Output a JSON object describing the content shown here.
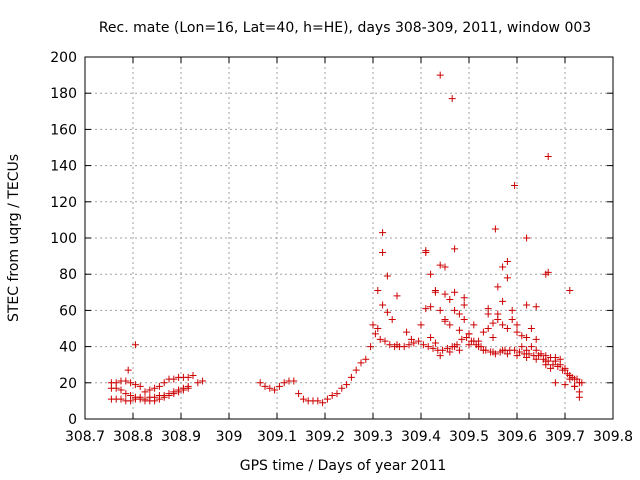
{
  "chart_data": {
    "type": "scatter",
    "title": "Rec. mate (Lon=16, Lat=40, h=HE), days 308-309, 2011, window 003",
    "xlabel": "GPS time / Days of year 2011",
    "ylabel": "STEC from uqrg / TECUs",
    "xlim": [
      308.7,
      309.8
    ],
    "ylim": [
      0,
      200
    ],
    "xticks": [
      "308.7",
      "308.8",
      "308.9",
      "309",
      "309.1",
      "309.2",
      "309.3",
      "309.4",
      "309.5",
      "309.6",
      "309.7",
      "309.8"
    ],
    "xtick_values": [
      308.7,
      308.8,
      308.9,
      309.0,
      309.1,
      309.2,
      309.3,
      309.4,
      309.5,
      309.6,
      309.7,
      309.8
    ],
    "yticks": [
      "0",
      "20",
      "40",
      "60",
      "80",
      "100",
      "120",
      "140",
      "160",
      "180",
      "200"
    ],
    "ytick_values": [
      0,
      20,
      40,
      60,
      80,
      100,
      120,
      140,
      160,
      180,
      200
    ],
    "grid": true,
    "marker": "+",
    "color": "#cc0000",
    "x": [
      308.755,
      308.765,
      308.775,
      308.785,
      308.795,
      308.805,
      308.815,
      308.825,
      308.835,
      308.845,
      308.855,
      308.865,
      308.875,
      308.885,
      308.895,
      308.905,
      308.915,
      308.925,
      308.935,
      308.945,
      308.755,
      308.765,
      308.775,
      308.785,
      308.795,
      308.805,
      308.815,
      308.825,
      308.835,
      308.845,
      308.855,
      308.865,
      308.875,
      308.885,
      308.895,
      308.905,
      308.915,
      308.755,
      308.765,
      308.775,
      308.785,
      308.795,
      308.805,
      308.815,
      308.825,
      308.835,
      308.845,
      308.855,
      308.865,
      308.875,
      308.885,
      308.895,
      308.905,
      308.915,
      308.79,
      308.805,
      309.065,
      309.075,
      309.085,
      309.095,
      309.105,
      309.115,
      309.125,
      309.135,
      309.145,
      309.155,
      309.165,
      309.175,
      309.185,
      309.195,
      309.205,
      309.215,
      309.225,
      309.235,
      309.245,
      309.255,
      309.265,
      309.275,
      309.285,
      309.295,
      309.305,
      309.315,
      309.325,
      309.335,
      309.345,
      309.355,
      309.365,
      309.375,
      309.385,
      309.395,
      309.405,
      309.415,
      309.425,
      309.435,
      309.445,
      309.455,
      309.465,
      309.475,
      309.485,
      309.495,
      309.505,
      309.515,
      309.525,
      309.535,
      309.545,
      309.555,
      309.565,
      309.575,
      309.585,
      309.595,
      309.605,
      309.615,
      309.625,
      309.635,
      309.645,
      309.655,
      309.665,
      309.675,
      309.685,
      309.695,
      309.705,
      309.715,
      309.725,
      309.735,
      309.3,
      309.31,
      309.32,
      309.33,
      309.34,
      309.35,
      309.37,
      309.38,
      309.4,
      309.41,
      309.42,
      309.43,
      309.44,
      309.45,
      309.46,
      309.47,
      309.48,
      309.49,
      309.5,
      309.51,
      309.52,
      309.53,
      309.54,
      309.55,
      309.56,
      309.57,
      309.58,
      309.59,
      309.6,
      309.61,
      309.62,
      309.63,
      309.64,
      309.65,
      309.66,
      309.67,
      309.68,
      309.69,
      309.7,
      309.71,
      309.72,
      309.73,
      309.31,
      309.32,
      309.35,
      309.41,
      309.42,
      309.43,
      309.44,
      309.45,
      309.46,
      309.47,
      309.48,
      309.49,
      309.5,
      309.52,
      309.54,
      309.55,
      309.56,
      309.57,
      309.58,
      309.59,
      309.6,
      309.61,
      309.62,
      309.63,
      309.64,
      309.65,
      309.66,
      309.67,
      309.68,
      309.69,
      309.7,
      309.71,
      309.72,
      309.73,
      309.42,
      309.43,
      309.44,
      309.45,
      309.46,
      309.47,
      309.48,
      309.5,
      309.51,
      309.53,
      309.55,
      309.57,
      309.58,
      309.6,
      309.62,
      309.64,
      309.66,
      309.68,
      309.7,
      309.72,
      309.73,
      309.44,
      309.45,
      309.465,
      309.555,
      309.595,
      309.62,
      309.665,
      309.665,
      309.71,
      309.32,
      309.33,
      309.41,
      309.56,
      309.57,
      309.58,
      309.47,
      309.49,
      309.54,
      309.62,
      309.64,
      309.66
    ],
    "y": [
      20,
      20,
      21,
      21,
      20,
      19,
      18,
      15,
      16,
      17,
      18,
      20,
      22,
      22,
      23,
      23,
      23,
      24,
      20,
      21,
      17,
      17,
      16,
      14,
      13,
      12,
      12,
      11,
      12,
      12,
      13,
      13,
      14,
      15,
      16,
      17,
      18,
      11,
      11,
      11,
      10,
      10,
      11,
      11,
      10,
      10,
      10,
      11,
      12,
      13,
      14,
      15,
      16,
      17,
      27,
      41,
      20,
      18,
      17,
      16,
      18,
      20,
      21,
      21,
      14,
      11,
      10,
      10,
      10,
      9,
      11,
      13,
      14,
      17,
      19,
      23,
      27,
      31,
      33,
      40,
      47,
      44,
      43,
      41,
      40,
      40,
      40,
      41,
      42,
      43,
      41,
      40,
      39,
      38,
      38,
      39,
      40,
      41,
      44,
      45,
      43,
      41,
      40,
      38,
      37,
      36,
      37,
      38,
      38,
      38,
      37,
      36,
      36,
      35,
      35,
      33,
      32,
      30,
      29,
      27,
      25,
      23,
      22,
      20,
      52,
      71,
      63,
      79,
      55,
      68,
      48,
      44,
      52,
      61,
      62,
      71,
      60,
      55,
      66,
      60,
      49,
      55,
      47,
      52,
      40,
      48,
      58,
      53,
      58,
      52,
      50,
      55,
      48,
      46,
      45,
      40,
      38,
      36,
      35,
      34,
      32,
      30,
      28,
      24,
      22,
      20,
      50,
      92,
      41,
      92,
      80,
      70,
      85,
      69,
      52,
      70,
      58,
      67,
      47,
      43,
      50,
      45,
      55,
      65,
      78,
      60,
      52,
      40,
      38,
      50,
      44,
      36,
      30,
      28,
      34,
      33,
      27,
      22,
      18,
      15,
      45,
      42,
      35,
      54,
      37,
      40,
      38,
      41,
      43,
      38,
      37,
      38,
      36,
      35,
      34,
      33,
      32,
      20,
      19,
      18,
      12,
      190,
      84,
      177,
      105,
      129,
      100,
      145,
      81,
      71,
      103,
      59,
      93,
      73,
      84,
      87,
      94,
      63,
      61,
      63,
      62,
      80
    ]
  }
}
